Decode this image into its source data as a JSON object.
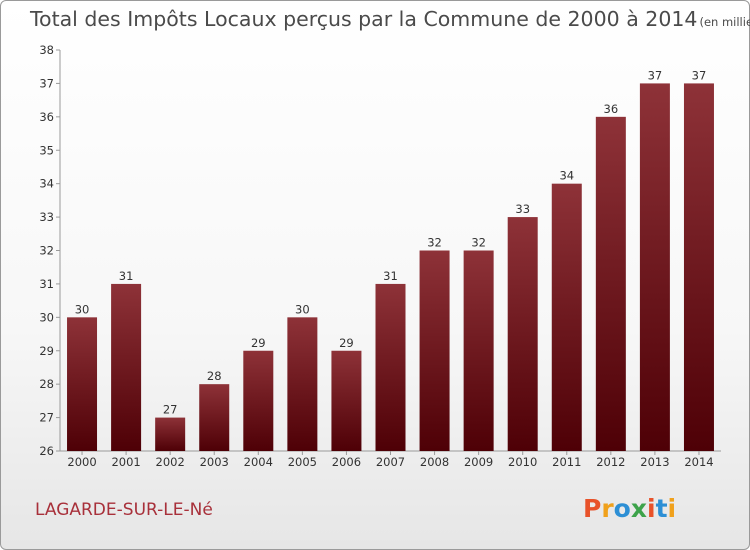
{
  "chart_data": {
    "type": "bar",
    "title": "Total des Impôts Locaux perçus par la Commune de 2000 à 2014",
    "unit": "(en milliers d'€)",
    "categories": [
      "2000",
      "2001",
      "2002",
      "2003",
      "2004",
      "2005",
      "2006",
      "2007",
      "2008",
      "2009",
      "2010",
      "2011",
      "2012",
      "2013",
      "2014"
    ],
    "values": [
      30,
      31,
      27,
      28,
      29,
      30,
      29,
      31,
      32,
      32,
      33,
      34,
      36,
      37,
      37
    ],
    "ylim": [
      26,
      38
    ],
    "yticks": [
      26,
      27,
      28,
      29,
      30,
      31,
      32,
      33,
      34,
      35,
      36,
      37,
      38
    ],
    "xlabel": "",
    "ylabel": "",
    "grid": false,
    "bar_color": "#6b0f16"
  },
  "commune": "LAGARDE-SUR-LE-Né",
  "logo": {
    "letters": [
      "P",
      "r",
      "o",
      "x",
      "i",
      "t",
      "i"
    ],
    "colors": [
      "#e8522a",
      "#f0a11c",
      "#2d8fd5",
      "#3da34a",
      "#e8522a",
      "#2d8fd5",
      "#f0a11c"
    ]
  }
}
